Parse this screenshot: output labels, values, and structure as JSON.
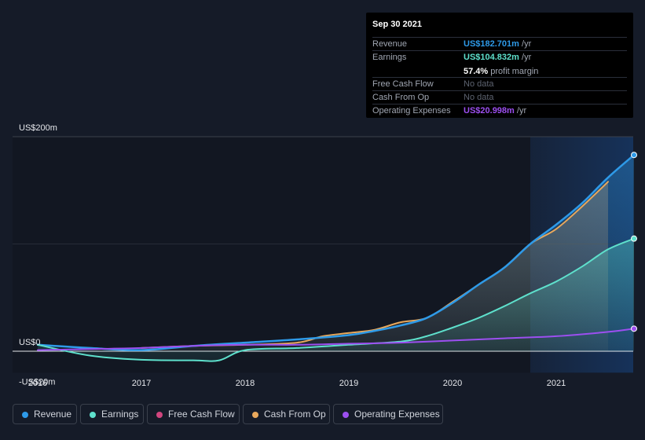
{
  "tooltip": {
    "date": "Sep 30 2021",
    "rows": [
      {
        "label": "Revenue",
        "value": "US$182.701m",
        "unit": " /yr",
        "color": "#2e9ae8"
      },
      {
        "label": "Earnings",
        "value": "US$104.832m",
        "unit": " /yr",
        "color": "#5ee0cc"
      },
      {
        "label": "",
        "value": "57.4%",
        "unit": " profit margin",
        "color": "#ffffff"
      },
      {
        "label": "Free Cash Flow",
        "value": "No data",
        "unit": "",
        "color": ""
      },
      {
        "label": "Cash From Op",
        "value": "No data",
        "unit": "",
        "color": ""
      },
      {
        "label": "Operating Expenses",
        "value": "US$20.998m",
        "unit": " /yr",
        "color": "#9c4ff0"
      }
    ]
  },
  "legend": [
    {
      "label": "Revenue",
      "color": "#2e9ae8"
    },
    {
      "label": "Earnings",
      "color": "#5ee0cc"
    },
    {
      "label": "Free Cash Flow",
      "color": "#d0457e"
    },
    {
      "label": "Cash From Op",
      "color": "#e8a85c"
    },
    {
      "label": "Operating Expenses",
      "color": "#9c4ff0"
    }
  ],
  "chart_data": {
    "type": "line",
    "y_labels": [
      "US$200m",
      "US$0",
      "-US$20m"
    ],
    "x_ticks": [
      "2016",
      "2017",
      "2018",
      "2019",
      "2020",
      "2021"
    ],
    "ylim": [
      -20,
      200
    ],
    "xlim": [
      2015.75,
      2021.75
    ],
    "highlight_start": 2020.75,
    "grid": true,
    "legend_position": "bottom",
    "series": [
      {
        "name": "Revenue",
        "color": "#2e9ae8",
        "x": [
          2016.0,
          2016.5,
          2017.0,
          2017.5,
          2018.0,
          2018.5,
          2019.0,
          2019.25,
          2019.5,
          2019.75,
          2020.0,
          2020.25,
          2020.5,
          2020.75,
          2021.0,
          2021.25,
          2021.5,
          2021.75
        ],
        "y": [
          6,
          3,
          1,
          5,
          8,
          11,
          15,
          19,
          24,
          31,
          45,
          62,
          78,
          100,
          118,
          138,
          162,
          183
        ]
      },
      {
        "name": "Earnings",
        "color": "#5ee0cc",
        "x": [
          2016.0,
          2016.5,
          2017.0,
          2017.5,
          2017.75,
          2018.0,
          2018.5,
          2019.0,
          2019.5,
          2019.75,
          2020.0,
          2020.25,
          2020.5,
          2020.75,
          2021.0,
          2021.25,
          2021.5,
          2021.75
        ],
        "y": [
          6,
          -4,
          -8,
          -8.5,
          -8.5,
          1,
          3,
          6,
          9,
          14,
          22,
          31,
          42,
          54,
          65,
          79,
          95,
          105
        ]
      },
      {
        "name": "Cash From Op",
        "color": "#e8a85c",
        "x": [
          2017.0,
          2017.5,
          2018.0,
          2018.5,
          2018.75,
          2019.0,
          2019.25,
          2019.5,
          2019.75,
          2020.0,
          2020.25,
          2020.5,
          2020.75,
          2021.0,
          2021.25,
          2021.5
        ],
        "y": [
          3,
          5,
          6,
          8,
          14,
          17,
          20,
          27,
          31,
          46,
          62,
          78,
          100,
          114,
          135,
          158
        ]
      },
      {
        "name": "Operating Expenses",
        "color": "#9c4ff0",
        "x": [
          2016.0,
          2016.5,
          2017.0,
          2017.5,
          2018.0,
          2018.5,
          2019.0,
          2019.5,
          2020.0,
          2020.5,
          2021.0,
          2021.5,
          2021.75
        ],
        "y": [
          1,
          2,
          3,
          5,
          6,
          6,
          7,
          8,
          10,
          12,
          14,
          18,
          21
        ]
      }
    ]
  }
}
